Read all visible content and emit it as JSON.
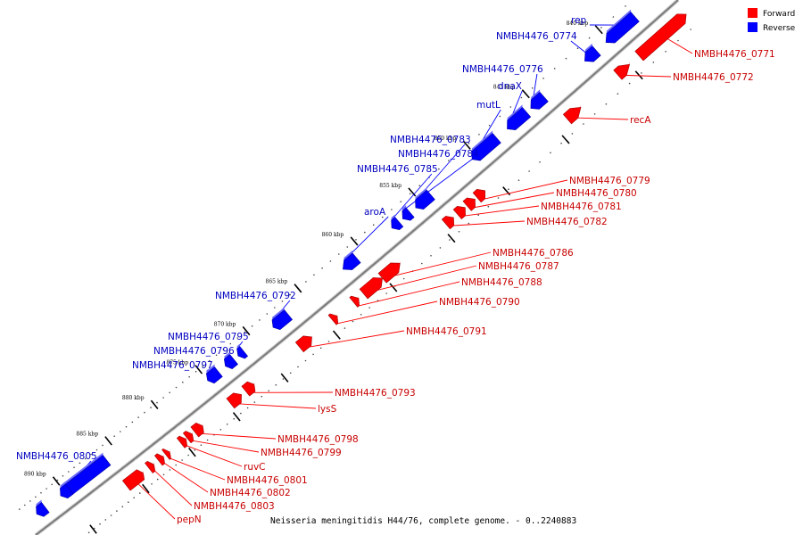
{
  "colors": {
    "forward": "#ff0000",
    "forward_text": "#c80000",
    "reverse": "#0000ff",
    "reverse_text": "#0000c0",
    "backbone": "#777777"
  },
  "legend": {
    "forward": "Forward",
    "reverse": "Reverse"
  },
  "caption": "Neisseria meningitidis H44/76, complete genome. - 0..2240883",
  "ticks": [
    "840 kbp",
    "845 kbp",
    "850 kbp",
    "855 kbp",
    "860 kbp",
    "865 kbp",
    "870 kbp",
    "875 kbp",
    "880 kbp",
    "885 kbp",
    "890 kbp"
  ],
  "reverse_labels": [
    "rep",
    "NMBH4476_0774",
    "NMBH4476_0776",
    "dnaX",
    "mutL",
    "NMBH4476_0783",
    "NMBH4476_0784",
    "NMBH4476_0785",
    "aroA",
    "NMBH4476_0792",
    "NMBH4476_0795",
    "NMBH4476_0796",
    "NMBH4476_0797",
    "NMBH4476_0805"
  ],
  "forward_labels": [
    "NMBH4476_0771",
    "NMBH4476_0772",
    "recA",
    "NMBH4476_0779",
    "NMBH4476_0780",
    "NMBH4476_0781",
    "NMBH4476_0782",
    "NMBH4476_0786",
    "NMBH4476_0787",
    "NMBH4476_0788",
    "NMBH4476_0790",
    "NMBH4476_0791",
    "NMBH4476_0793",
    "lysS",
    "NMBH4476_0798",
    "NMBH4476_0799",
    "ruvC",
    "NMBH4476_0801",
    "NMBH4476_0802",
    "NMBH4476_0803",
    "pepN"
  ]
}
